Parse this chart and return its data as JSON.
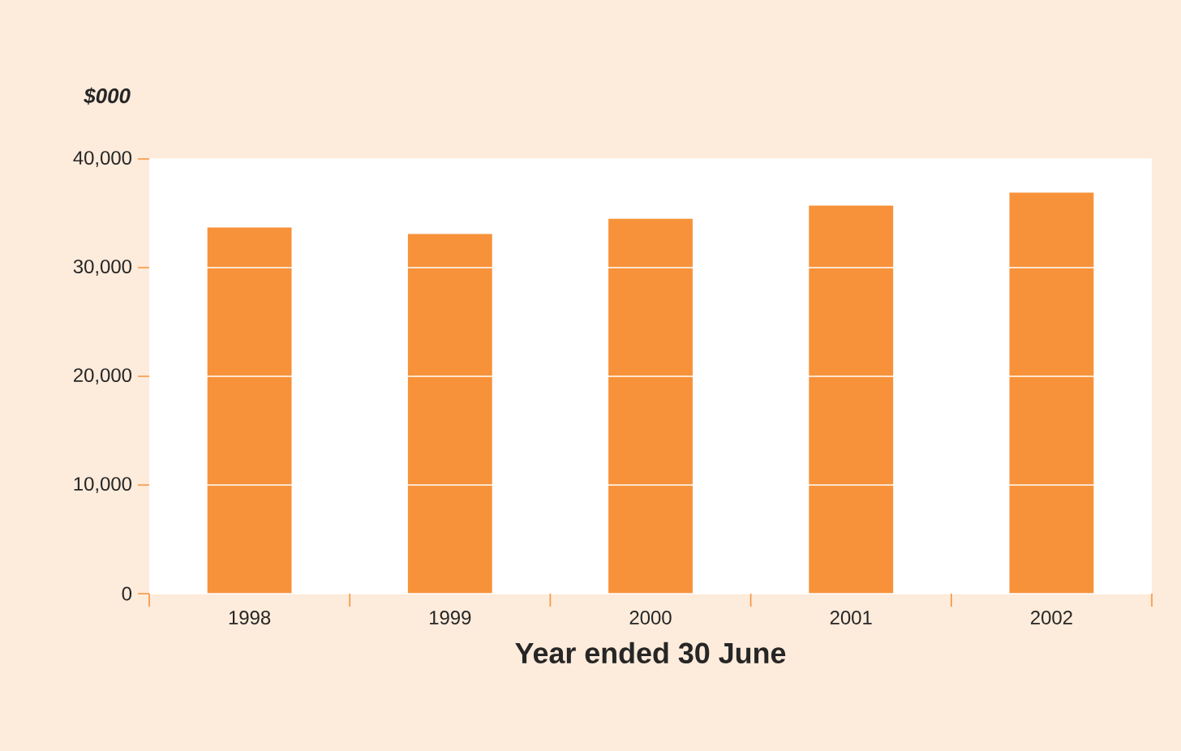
{
  "chart_data": {
    "type": "bar",
    "xlabel": "Year ended 30 June",
    "ylabel": "$000",
    "categories": [
      "1998",
      "1999",
      "2000",
      "2001",
      "2002"
    ],
    "values": [
      33700,
      33100,
      34500,
      35700,
      36900
    ],
    "color": "#f7923a",
    "ylim": [
      0,
      40000
    ],
    "yticks": [
      0,
      {
        "value": 10000,
        "label": "10,000"
      },
      {
        "value": 20000,
        "label": "20,000"
      },
      {
        "value": 30000,
        "label": "30,000"
      },
      {
        "value": 40000,
        "label": "40,000"
      }
    ],
    "grid": "y"
  }
}
